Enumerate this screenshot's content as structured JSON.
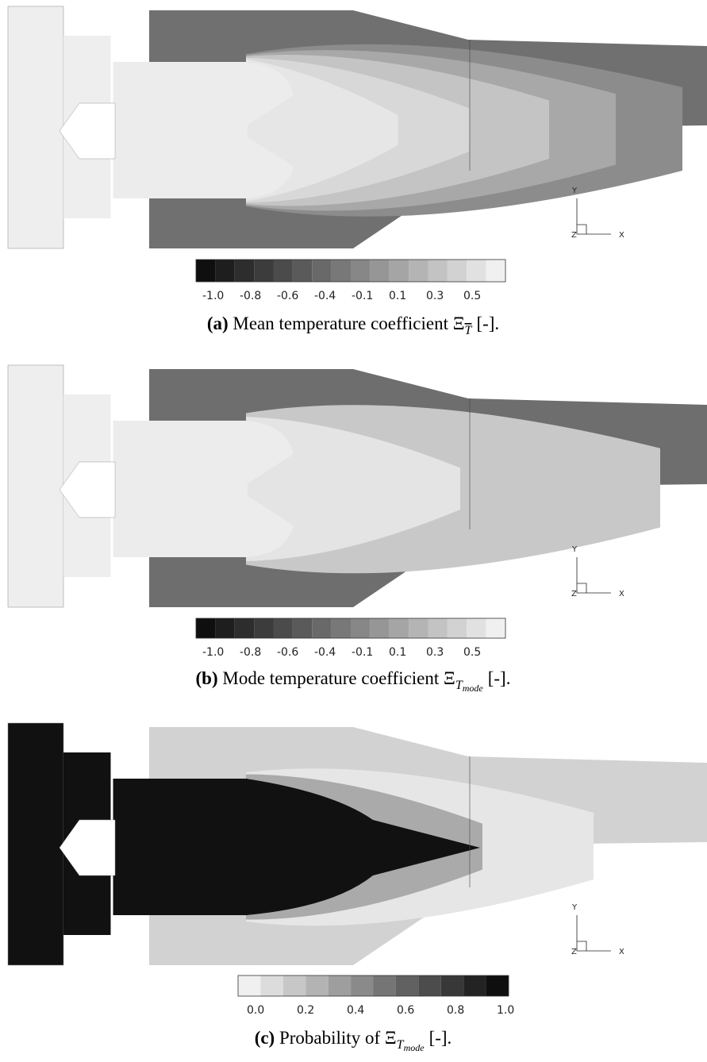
{
  "panels": [
    {
      "style": "mean",
      "colorbar": {
        "direction": "dark-to-light",
        "ticks": [
          "-1.0",
          "-0.8",
          "-0.6",
          "-0.4",
          "-0.1",
          "0.1",
          "0.3",
          "0.5"
        ]
      },
      "axes": {
        "y": "Y",
        "x": "X",
        "z": "Z"
      },
      "caption": {
        "label": "(a)",
        "text": "Mean temperature coefficient",
        "symbol": "Ξ",
        "subscript": "T",
        "subscript_overline": true,
        "suffix": "[-]."
      }
    },
    {
      "style": "mode",
      "colorbar": {
        "direction": "dark-to-light",
        "ticks": [
          "-1.0",
          "-0.8",
          "-0.6",
          "-0.4",
          "-0.1",
          "0.1",
          "0.3",
          "0.5"
        ]
      },
      "axes": {
        "y": "Y",
        "x": "X",
        "z": "Z"
      },
      "caption": {
        "label": "(b)",
        "text": "Mode temperature coefficient",
        "symbol": "Ξ",
        "subscript": "T",
        "subsubscript": "mode",
        "suffix": "[-]."
      }
    },
    {
      "style": "probability",
      "colorbar": {
        "direction": "light-to-dark",
        "ticks": [
          "0.0",
          "0.2",
          "0.4",
          "0.6",
          "0.8",
          "1.0"
        ]
      },
      "axes": {
        "y": "Y",
        "x": "X",
        "z": "Z"
      },
      "caption": {
        "label": "(c)",
        "text": "Probability of",
        "symbol": "Ξ",
        "subscript": "T",
        "subsubscript": "mode",
        "suffix": "[-]."
      }
    }
  ]
}
